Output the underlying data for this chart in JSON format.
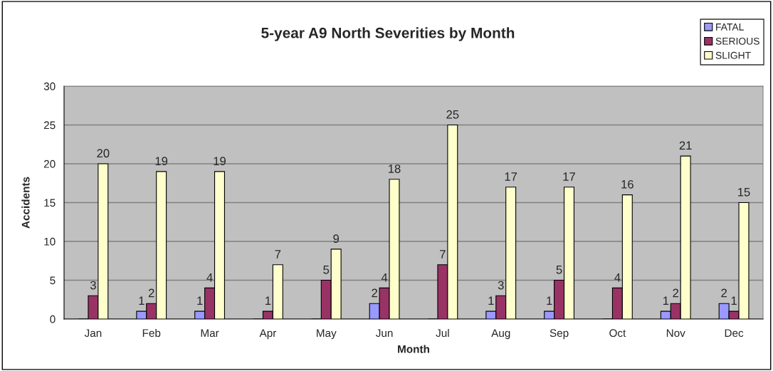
{
  "chart_data": {
    "type": "bar",
    "title": "5-year A9 North Severities by Month",
    "xlabel": "Month",
    "ylabel": "Accidents",
    "categories": [
      "Jan",
      "Feb",
      "Mar",
      "Apr",
      "May",
      "Jun",
      "Jul",
      "Aug",
      "Sep",
      "Oct",
      "Nov",
      "Dec"
    ],
    "series": [
      {
        "name": "FATAL",
        "color": "#9999ff",
        "values": [
          0,
          1,
          1,
          0,
          0,
          2,
          0,
          1,
          1,
          0,
          1,
          2
        ],
        "value_labels": [
          null,
          "1",
          "1",
          null,
          null,
          "2",
          null,
          "1",
          "1",
          null,
          "1",
          "2"
        ]
      },
      {
        "name": "SERIOUS",
        "color": "#993366",
        "values": [
          3,
          2,
          4,
          1,
          5,
          4,
          7,
          3,
          5,
          4,
          2,
          1
        ],
        "value_labels": [
          "3",
          "2",
          "4",
          "1",
          "5",
          "4",
          "7",
          "3",
          "5",
          "4",
          "2",
          "1"
        ]
      },
      {
        "name": "SLIGHT",
        "color": "#ffffcc",
        "values": [
          20,
          19,
          19,
          7,
          9,
          18,
          25,
          17,
          17,
          16,
          21,
          15
        ],
        "value_labels": [
          "20",
          "19",
          "19",
          "7",
          "9",
          "18",
          "25",
          "17",
          "17",
          "16",
          "21",
          "15"
        ]
      }
    ],
    "ylim": [
      0,
      30
    ],
    "yticks": [
      0,
      5,
      10,
      15,
      20,
      25,
      30
    ],
    "grid": "y",
    "legend": "top right"
  }
}
